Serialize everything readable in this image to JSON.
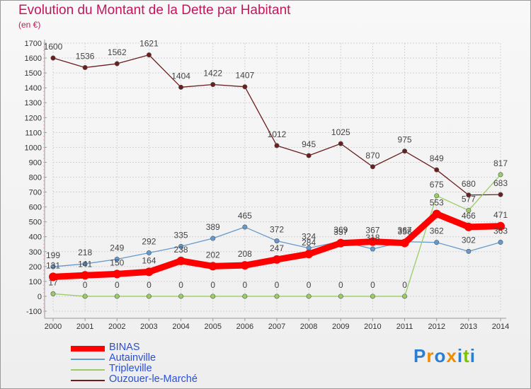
{
  "title": "Evolution du Montant de la Dette par Habitant",
  "subtitle": "(en €)",
  "logo": {
    "text": "Proxiti",
    "letters": [
      "P",
      "r",
      "o",
      "x",
      "i",
      "t",
      "i"
    ],
    "colors": [
      "#2a7fd4",
      "#f08c00",
      "#2a7fd4",
      "#f08c00",
      "#2a7fd4",
      "#7cc400",
      "#2a7fd4"
    ]
  },
  "chart_data": {
    "type": "line",
    "title": "Evolution du Montant de la Dette par Habitant",
    "subtitle": "(en €)",
    "x": [
      "2000",
      "2001",
      "2002",
      "2003",
      "2004",
      "2005",
      "2006",
      "2007",
      "2008",
      "2009",
      "2010",
      "2011",
      "2012",
      "2013",
      "2014"
    ],
    "ylim": [
      -100,
      1700
    ],
    "yticks": [
      -100,
      0,
      100,
      200,
      300,
      400,
      500,
      600,
      700,
      800,
      900,
      1000,
      1100,
      1200,
      1300,
      1400,
      1500,
      1600,
      1700
    ],
    "grid": true,
    "legend": "bottom-left",
    "series": [
      {
        "name": "BINAS",
        "color": "#ff0000",
        "values": [
          131,
          141,
          150,
          164,
          238,
          202,
          208,
          247,
          284,
          357,
          367,
          358,
          553,
          466,
          471
        ]
      },
      {
        "name": "Autainville",
        "color": "#6699cc",
        "values": [
          199,
          218,
          249,
          292,
          335,
          389,
          465,
          372,
          324,
          369,
          318,
          367,
          362,
          302,
          363
        ]
      },
      {
        "name": "Tripleville",
        "color": "#99cc66",
        "values": [
          17,
          0,
          0,
          0,
          0,
          0,
          0,
          0,
          0,
          0,
          0,
          0,
          675,
          577,
          817
        ]
      },
      {
        "name": "Ouzouer-le-Marché",
        "color": "#6b1e1e",
        "values": [
          1600,
          1536,
          1562,
          1621,
          1404,
          1422,
          1407,
          1012,
          945,
          1025,
          870,
          975,
          849,
          680,
          683
        ]
      }
    ]
  }
}
